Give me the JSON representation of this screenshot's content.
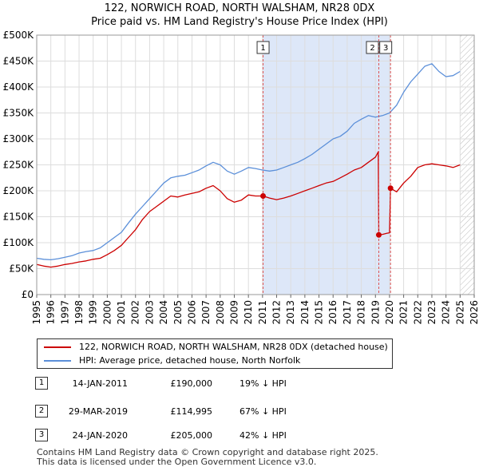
{
  "title_line1": "122, NORWICH ROAD, NORTH WALSHAM, NR28 0DX",
  "title_line2": "Price paid vs. HM Land Registry's House Price Index (HPI)",
  "colors": {
    "property_line": "#cc0000",
    "hpi_line": "#5b8fd9",
    "highlight_band": "#dde7f8",
    "hatch": "#bbbbbb",
    "marker_line": "#dd5555",
    "grid": "#dddddd"
  },
  "legend": {
    "property_label": "122, NORWICH ROAD, NORTH WALSHAM, NR28 0DX (detached house)",
    "hpi_label": "HPI: Average price, detached house, North Norfolk"
  },
  "transactions": [
    {
      "num": "1",
      "date": "14-JAN-2011",
      "price": "£190,000",
      "hpi_diff": "19% ↓ HPI"
    },
    {
      "num": "2",
      "date": "29-MAR-2019",
      "price": "£114,995",
      "hpi_diff": "67% ↓ HPI"
    },
    {
      "num": "3",
      "date": "24-JAN-2020",
      "price": "£205,000",
      "hpi_diff": "42% ↓ HPI"
    }
  ],
  "footer_line1": "Contains HM Land Registry data © Crown copyright and database right 2025.",
  "footer_line2": "This data is licensed under the Open Government Licence v3.0.",
  "chart_data": {
    "type": "line",
    "title": "122, NORWICH ROAD, NORTH WALSHAM, NR28 0DX — Price paid vs. HM Land Registry's House Price Index (HPI)",
    "xlabel": "",
    "ylabel": "",
    "xlim": [
      1995,
      2026
    ],
    "ylim": [
      0,
      500000
    ],
    "x_ticks": [
      1995,
      1996,
      1997,
      1998,
      1999,
      2000,
      2001,
      2002,
      2003,
      2004,
      2005,
      2006,
      2007,
      2008,
      2009,
      2010,
      2011,
      2012,
      2013,
      2014,
      2015,
      2016,
      2017,
      2018,
      2019,
      2020,
      2021,
      2022,
      2023,
      2024,
      2025,
      2026
    ],
    "y_ticks": [
      {
        "value": 0,
        "label": "£0"
      },
      {
        "value": 50000,
        "label": "£50K"
      },
      {
        "value": 100000,
        "label": "£100K"
      },
      {
        "value": 150000,
        "label": "£150K"
      },
      {
        "value": 200000,
        "label": "£200K"
      },
      {
        "value": 250000,
        "label": "£250K"
      },
      {
        "value": 300000,
        "label": "£300K"
      },
      {
        "value": 350000,
        "label": "£350K"
      },
      {
        "value": 400000,
        "label": "£400K"
      },
      {
        "value": 450000,
        "label": "£450K"
      },
      {
        "value": 500000,
        "label": "£500K"
      }
    ],
    "highlight_range": [
      2011.04,
      2020.07
    ],
    "future_hatch_from": 2025.0,
    "grid": true,
    "legend_position": "below",
    "series": [
      {
        "name": "122, NORWICH ROAD, NORTH WALSHAM, NR28 0DX (detached house)",
        "color": "#cc0000",
        "x": [
          1995.0,
          1995.5,
          1996.0,
          1996.5,
          1997.0,
          1997.5,
          1998.0,
          1998.5,
          1999.0,
          1999.5,
          2000.0,
          2000.5,
          2001.0,
          2001.5,
          2002.0,
          2002.5,
          2003.0,
          2003.5,
          2004.0,
          2004.5,
          2005.0,
          2005.5,
          2006.0,
          2006.5,
          2007.0,
          2007.5,
          2008.0,
          2008.5,
          2009.0,
          2009.5,
          2010.0,
          2010.5,
          2011.04,
          2011.5,
          2012.0,
          2012.5,
          2013.0,
          2013.5,
          2014.0,
          2014.5,
          2015.0,
          2015.5,
          2016.0,
          2016.5,
          2017.0,
          2017.5,
          2018.0,
          2018.5,
          2019.0,
          2019.2,
          2019.24,
          2019.5,
          2019.8,
          2020.0,
          2020.07,
          2020.5,
          2021.0,
          2021.5,
          2022.0,
          2022.5,
          2023.0,
          2023.5,
          2024.0,
          2024.5,
          2025.0
        ],
        "y": [
          58000,
          55000,
          53000,
          55000,
          58000,
          60000,
          63000,
          65000,
          68000,
          70000,
          77000,
          85000,
          95000,
          110000,
          125000,
          145000,
          160000,
          170000,
          180000,
          190000,
          188000,
          192000,
          195000,
          198000,
          205000,
          210000,
          200000,
          185000,
          178000,
          182000,
          192000,
          190000,
          190000,
          186000,
          183000,
          186000,
          190000,
          195000,
          200000,
          205000,
          210000,
          215000,
          218000,
          225000,
          232000,
          240000,
          245000,
          255000,
          265000,
          275000,
          114995,
          116000,
          118000,
          119000,
          205000,
          198000,
          215000,
          228000,
          245000,
          250000,
          252000,
          250000,
          248000,
          245000,
          250000
        ]
      },
      {
        "name": "HPI: Average price, detached house, North Norfolk",
        "color": "#5b8fd9",
        "x": [
          1995.0,
          1995.5,
          1996.0,
          1996.5,
          1997.0,
          1997.5,
          1998.0,
          1998.5,
          1999.0,
          1999.5,
          2000.0,
          2000.5,
          2001.0,
          2001.5,
          2002.0,
          2002.5,
          2003.0,
          2003.5,
          2004.0,
          2004.5,
          2005.0,
          2005.5,
          2006.0,
          2006.5,
          2007.0,
          2007.5,
          2008.0,
          2008.5,
          2009.0,
          2009.5,
          2010.0,
          2010.5,
          2011.0,
          2011.5,
          2012.0,
          2012.5,
          2013.0,
          2013.5,
          2014.0,
          2014.5,
          2015.0,
          2015.5,
          2016.0,
          2016.5,
          2017.0,
          2017.5,
          2018.0,
          2018.5,
          2019.0,
          2019.5,
          2020.0,
          2020.5,
          2021.0,
          2021.5,
          2022.0,
          2022.5,
          2023.0,
          2023.5,
          2024.0,
          2024.5,
          2025.0
        ],
        "y": [
          70000,
          68000,
          67000,
          69000,
          72000,
          75000,
          80000,
          83000,
          85000,
          90000,
          100000,
          110000,
          120000,
          138000,
          155000,
          170000,
          185000,
          200000,
          215000,
          225000,
          228000,
          230000,
          235000,
          240000,
          248000,
          255000,
          250000,
          238000,
          232000,
          238000,
          245000,
          243000,
          240000,
          238000,
          240000,
          245000,
          250000,
          255000,
          262000,
          270000,
          280000,
          290000,
          300000,
          305000,
          315000,
          330000,
          338000,
          345000,
          342000,
          345000,
          350000,
          365000,
          390000,
          410000,
          425000,
          440000,
          445000,
          430000,
          420000,
          422000,
          430000
        ]
      }
    ],
    "markers": [
      {
        "label": "1",
        "x": 2011.04,
        "y": 190000
      },
      {
        "label": "2",
        "x": 2019.24,
        "y": 114995
      },
      {
        "label": "3",
        "x": 2020.07,
        "y": 205000
      }
    ]
  }
}
